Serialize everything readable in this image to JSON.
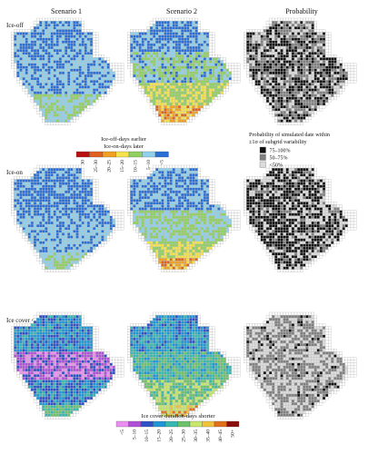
{
  "columns": {
    "scenario1": "Scenario 1",
    "scenario2": "Scenario 2",
    "probability": "Probability"
  },
  "rows": {
    "ice_off": "Ice-off",
    "ice_on": "Ice-on",
    "duration": "Ice cover duration"
  },
  "legend_offon": {
    "title_line1": "Ice-off-days earlier",
    "title_line2": "Ice-on-days later",
    "labels": [
      "30",
      "25–30",
      "20–25",
      "15–20",
      "10–15",
      "5–10",
      "<5"
    ],
    "colors": [
      "#b81010",
      "#e06020",
      "#f0a020",
      "#f6e24a",
      "#8fd060",
      "#8fd0ea",
      "#2a6fd6"
    ]
  },
  "legend_prob": {
    "title_line1": "Probability of simulated date within",
    "title_line2": "±1σ of subgrid variability",
    "labels": [
      "75–100%",
      "50–75%",
      "<50%"
    ],
    "colors": [
      "#111111",
      "#808080",
      "#dcdcdc"
    ]
  },
  "legend_duration": {
    "title": "Ice cover duration-days shorter",
    "labels": [
      "<5",
      "5–10",
      "10–15",
      "15–20",
      "20–25",
      "25–30",
      "30–35",
      "35–40",
      "40–45",
      "50+"
    ],
    "colors": [
      "#ea8ff0",
      "#b050d8",
      "#3050c8",
      "#1f94d6",
      "#36b7b0",
      "#6bc26a",
      "#c7e86a",
      "#f0c23a",
      "#e0701a",
      "#8a0e0e"
    ]
  },
  "outline_color": "#bdbdbd"
}
